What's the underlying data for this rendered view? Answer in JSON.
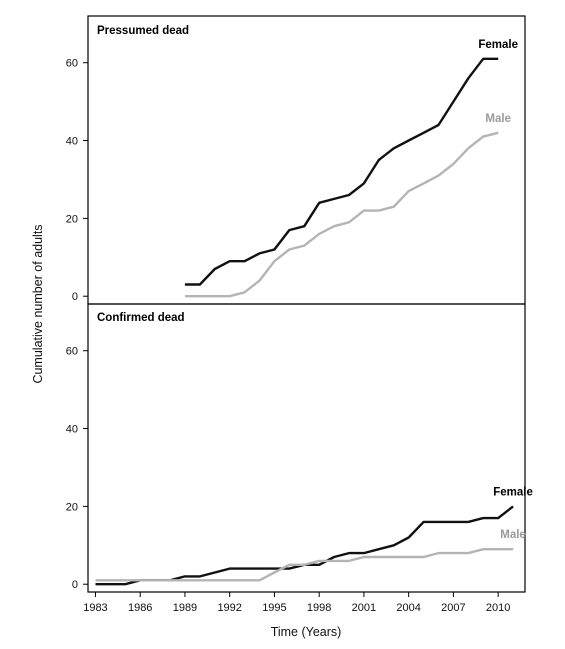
{
  "chart_data": {
    "type": "line",
    "ylabel": "Cumulative number of adults",
    "xlabel": "Time (Years)",
    "xlim": [
      1982.5,
      2011.8
    ],
    "ylim": [
      -2,
      72
    ],
    "x_ticks": [
      1983,
      1986,
      1989,
      1992,
      1995,
      1998,
      2001,
      2004,
      2007,
      2010
    ],
    "y_ticks": [
      0,
      20,
      40,
      60
    ],
    "grid": false,
    "panels": [
      {
        "title": "Pressumed dead",
        "series": [
          {
            "name": "Female",
            "color": "#111111",
            "x": [
              1989,
              1990,
              1991,
              1992,
              1993,
              1994,
              1995,
              1996,
              1997,
              1998,
              1999,
              2000,
              2001,
              2002,
              2003,
              2004,
              2005,
              2006,
              2007,
              2008,
              2009,
              2010
            ],
            "y": [
              3,
              3,
              7,
              9,
              9,
              11,
              12,
              17,
              18,
              24,
              25,
              26,
              29,
              35,
              38,
              40,
              42,
              44,
              50,
              56,
              61,
              61
            ]
          },
          {
            "name": "Male",
            "color": "#b4b4b4",
            "x": [
              1989,
              1990,
              1991,
              1992,
              1993,
              1994,
              1995,
              1996,
              1997,
              1998,
              1999,
              2000,
              2001,
              2002,
              2003,
              2004,
              2005,
              2006,
              2007,
              2008,
              2009,
              2010
            ],
            "y": [
              0,
              0,
              0,
              0,
              1,
              4,
              9,
              12,
              13,
              16,
              18,
              19,
              22,
              22,
              23,
              27,
              29,
              31,
              34,
              38,
              41,
              42
            ]
          }
        ]
      },
      {
        "title": "Confirmed dead",
        "series": [
          {
            "name": "Female",
            "color": "#111111",
            "x": [
              1983,
              1984,
              1985,
              1986,
              1987,
              1988,
              1989,
              1990,
              1991,
              1992,
              1993,
              1994,
              1995,
              1996,
              1997,
              1998,
              1999,
              2000,
              2001,
              2002,
              2003,
              2004,
              2005,
              2006,
              2007,
              2008,
              2009,
              2010,
              2011
            ],
            "y": [
              0,
              0,
              0,
              1,
              1,
              1,
              2,
              2,
              3,
              4,
              4,
              4,
              4,
              4,
              5,
              5,
              7,
              8,
              8,
              9,
              10,
              12,
              16,
              16,
              16,
              16,
              17,
              17,
              20
            ]
          },
          {
            "name": "Male",
            "color": "#b4b4b4",
            "x": [
              1983,
              1984,
              1985,
              1986,
              1987,
              1988,
              1989,
              1990,
              1991,
              1992,
              1993,
              1994,
              1995,
              1996,
              1997,
              1998,
              1999,
              2000,
              2001,
              2002,
              2003,
              2004,
              2005,
              2006,
              2007,
              2008,
              2009,
              2010,
              2011
            ],
            "y": [
              1,
              1,
              1,
              1,
              1,
              1,
              1,
              1,
              1,
              1,
              1,
              1,
              3,
              5,
              5,
              6,
              6,
              6,
              7,
              7,
              7,
              7,
              7,
              8,
              8,
              8,
              9,
              9,
              9
            ]
          }
        ]
      }
    ]
  }
}
